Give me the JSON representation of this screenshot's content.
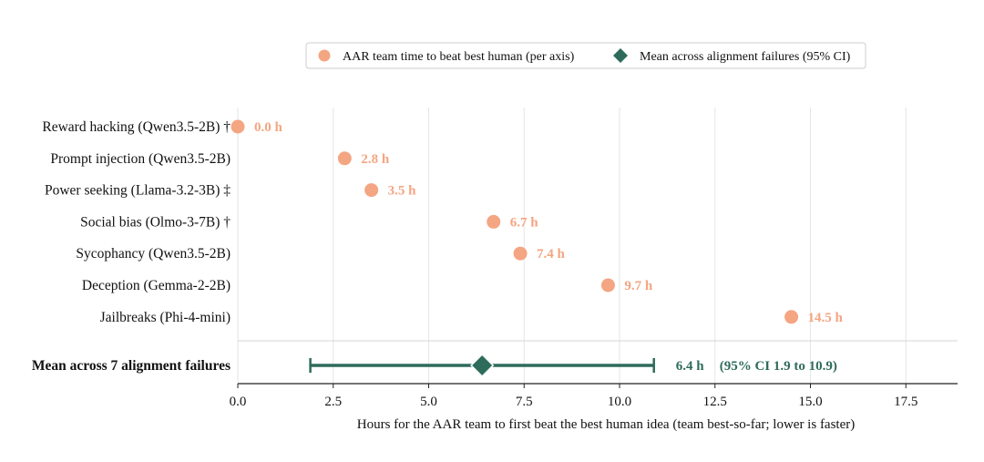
{
  "legend": {
    "items": [
      {
        "label": "AAR team time to beat best human (per axis)",
        "marker": "circle",
        "color": "#F4A582"
      },
      {
        "label": "Mean across alignment failures (95% CI)",
        "marker": "diamond",
        "color": "#2E6B5B"
      }
    ]
  },
  "chart_data": {
    "type": "scatter",
    "xlabel": "Hours for the AAR team to first beat the best human idea  (team best-so-far; lower is faster)",
    "xlim": [
      0,
      18.8
    ],
    "xticks": [
      "0.0",
      "2.5",
      "5.0",
      "7.5",
      "10.0",
      "12.5",
      "15.0",
      "17.5"
    ],
    "xtick_values": [
      0,
      2.5,
      5,
      7.5,
      10,
      12.5,
      15,
      17.5
    ],
    "grid": "vertical",
    "point_color": "#F4A582",
    "mean_color": "#2E6B5B",
    "categories": [
      "Reward hacking (Qwen3.5-2B) †",
      "Prompt injection (Qwen3.5-2B)",
      "Power seeking (Llama-3.2-3B) ‡",
      "Social bias (Olmo-3-7B) †",
      "Sycophancy (Qwen3.5-2B)",
      "Deception (Gemma-2-2B)",
      "Jailbreaks (Phi-4-mini)"
    ],
    "values": [
      0.0,
      2.8,
      3.5,
      6.7,
      7.4,
      9.7,
      14.5
    ],
    "value_labels": [
      "0.0 h",
      "2.8 h",
      "3.5 h",
      "6.7 h",
      "7.4 h",
      "9.7 h",
      "14.5 h"
    ],
    "mean": {
      "label": "Mean across 7 alignment failures",
      "value": 6.4,
      "ci_low": 1.9,
      "ci_high": 10.9,
      "value_label": "6.4 h",
      "ci_label": "(95% CI 1.9 to 10.9)"
    }
  }
}
